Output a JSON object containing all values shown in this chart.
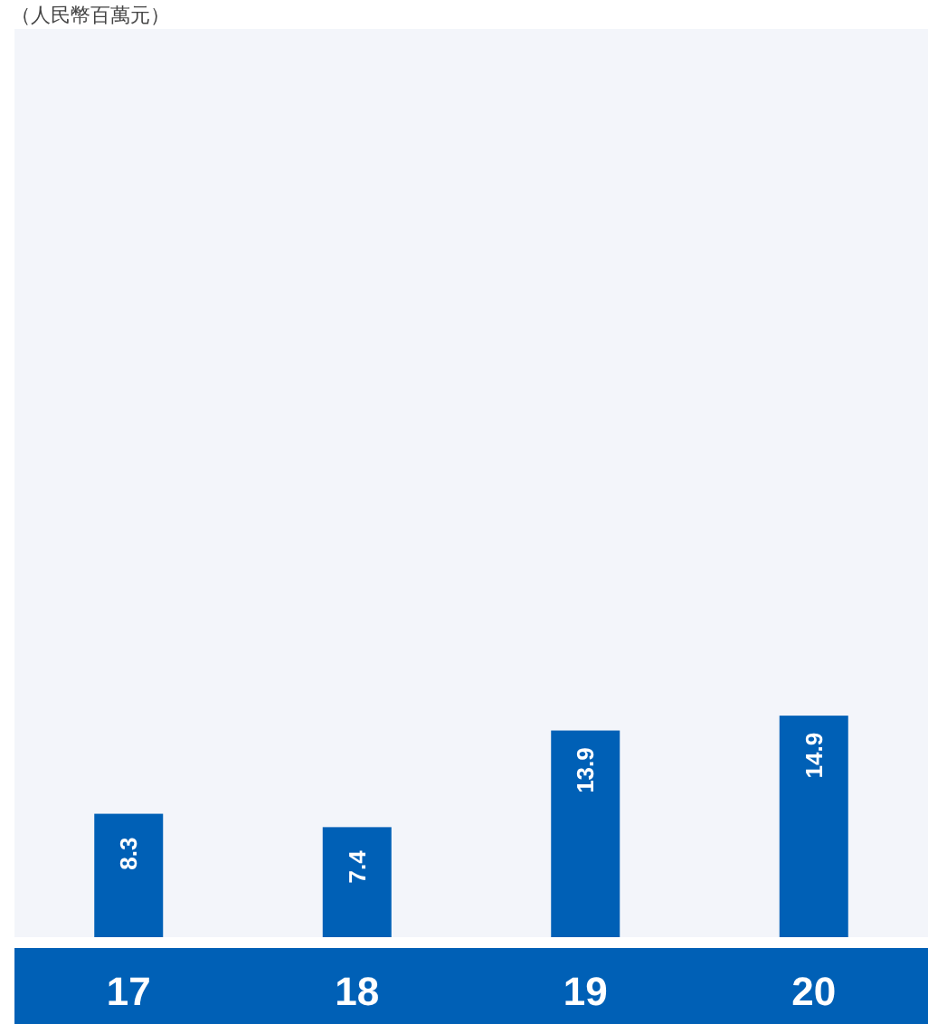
{
  "chart_data": {
    "type": "bar",
    "annotations": [
      "（人民幣百萬元）"
    ],
    "categories": [
      "17",
      "18",
      "19",
      "20"
    ],
    "values": [
      8.3,
      7.4,
      13.9,
      14.9
    ],
    "color": "#0060b6",
    "data_labels": true
  }
}
